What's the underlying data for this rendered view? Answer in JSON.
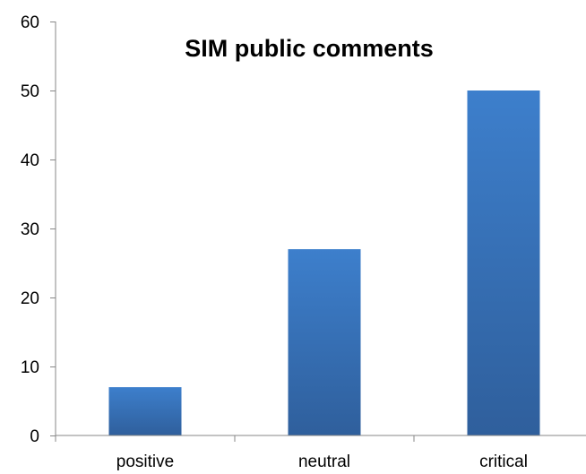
{
  "chart_data": {
    "type": "bar",
    "title": "SIM public comments",
    "xlabel": "",
    "ylabel": "",
    "categories": [
      "positive",
      "neutral",
      "critical"
    ],
    "values": [
      7,
      27,
      50
    ],
    "ylim": [
      0,
      60
    ],
    "yticks": [
      0,
      10,
      20,
      30,
      40,
      50,
      60
    ],
    "grid": false,
    "legend": "none",
    "colors": {
      "bar_top": "#3d7fcc",
      "bar_bottom": "#2f5f9c",
      "axis": "#878787"
    }
  }
}
